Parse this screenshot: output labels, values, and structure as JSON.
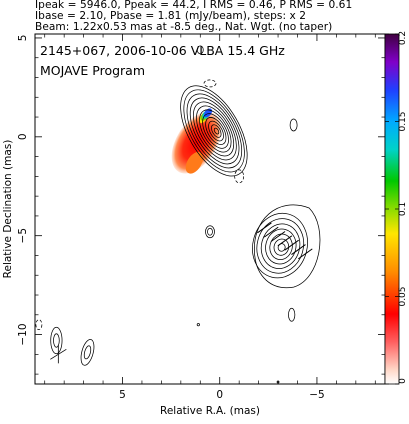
{
  "header": {
    "line1": "Ipeak = 5946.0, Ppeak = 44.2, I RMS = 0.46, P RMS = 0.61",
    "line2": "Ibase = 2.10, Pbase = 1.81 (mJy/beam), steps: x 2",
    "line3": "Beam: 1.22x0.53 mas at -8.5 deg., Nat. Wgt. (no taper)"
  },
  "panel": {
    "source": "2145+067, 2006-10-06 VLBA 15.4 GHz",
    "program": "MOJAVE Program"
  },
  "chart_data": {
    "type": "heatmap",
    "xlabel": "Relative R.A. (mas)",
    "ylabel": "Relative Declination (mas)",
    "xlim": [
      9.5,
      -8.5
    ],
    "ylim": [
      -12.5,
      5.2
    ],
    "x_ticks": [
      5,
      0,
      -5
    ],
    "x_tick_labels": [
      "5",
      "0",
      "−5"
    ],
    "y_ticks": [
      5,
      0,
      -5,
      -10
    ],
    "y_tick_labels": [
      "5",
      "0",
      "−5",
      "−10"
    ],
    "colorbar": {
      "ticks": [
        0,
        0.05,
        0.1,
        0.15,
        0.2
      ],
      "tick_labels": [
        "0",
        "0.05",
        "0.1",
        "0.15",
        "0.2"
      ],
      "range": [
        0,
        0.2
      ]
    },
    "core": {
      "x": 0.3,
      "y": 0.3,
      "contours": 12,
      "rx": 0.42,
      "ry": 1.15,
      "angle": -30
    },
    "jet_component": {
      "x": -3.1,
      "y": -5.5,
      "contours": 7,
      "rx": 0.45,
      "ry": 0.75,
      "angle": 15
    },
    "polarization_patch": {
      "x": 1.2,
      "y": -0.3,
      "peak_color": "#ff0000"
    },
    "beam": {
      "x": 8.1,
      "y": -10.4,
      "major": 1.22,
      "minor": 0.53,
      "pa": -8.5
    },
    "cross": {
      "x": 8.3,
      "y": -11.0
    }
  }
}
